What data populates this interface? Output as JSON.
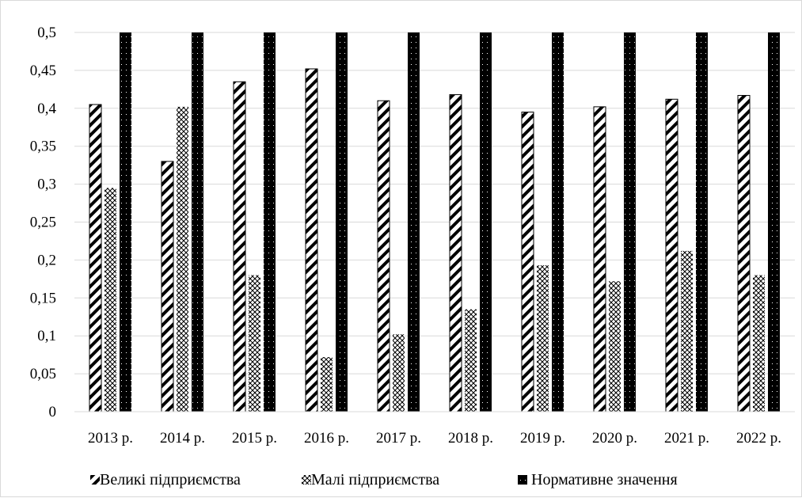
{
  "chart_data": {
    "type": "bar",
    "title": "",
    "xlabel": "",
    "ylabel": "",
    "categories": [
      "2013 р.",
      "2014 р.",
      "2015 р.",
      "2016 р.",
      "2017 р.",
      "2018 р.",
      "2019 р.",
      "2020 р.",
      "2021 р.",
      "2022 р."
    ],
    "ylim": [
      0,
      0.5
    ],
    "yticks": [
      {
        "value": 0,
        "label": "0"
      },
      {
        "value": 0.05,
        "label": "0,05"
      },
      {
        "value": 0.1,
        "label": "0,1"
      },
      {
        "value": 0.15,
        "label": "0,15"
      },
      {
        "value": 0.2,
        "label": "0,2"
      },
      {
        "value": 0.25,
        "label": "0,25"
      },
      {
        "value": 0.3,
        "label": "0,3"
      },
      {
        "value": 0.35,
        "label": "0,35"
      },
      {
        "value": 0.4,
        "label": "0,4"
      },
      {
        "value": 0.45,
        "label": "0,45"
      },
      {
        "value": 0.5,
        "label": "0,5"
      }
    ],
    "grid": true,
    "legend_position": "bottom",
    "series": [
      {
        "name": "Великі підприємства",
        "pattern": "diagonal-hatch",
        "color": "#000000",
        "values": [
          0.405,
          0.33,
          0.435,
          0.452,
          0.41,
          0.418,
          0.395,
          0.402,
          0.412,
          0.417
        ]
      },
      {
        "name": "Малі підприємства",
        "pattern": "crosshatch-dots",
        "color": "#000000",
        "values": [
          0.295,
          0.402,
          0.18,
          0.072,
          0.102,
          0.135,
          0.193,
          0.172,
          0.212,
          0.18
        ]
      },
      {
        "name": "Нормативне значення",
        "pattern": "black-dotted",
        "color": "#000000",
        "values": [
          0.5,
          0.5,
          0.5,
          0.5,
          0.5,
          0.5,
          0.5,
          0.5,
          0.5,
          0.5
        ]
      }
    ]
  }
}
